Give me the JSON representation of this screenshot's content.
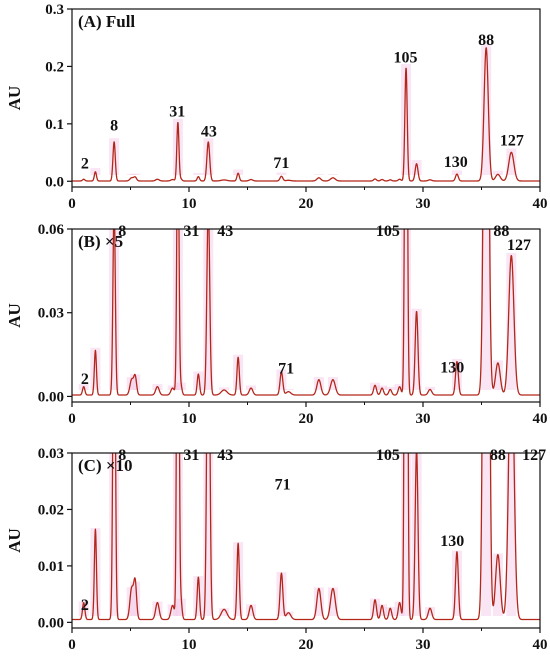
{
  "chart_data": [
    {
      "type": "line",
      "title": "(A) Full",
      "ylabel": "AU",
      "xlim": [
        0,
        40
      ],
      "ylim": [
        -0.01,
        0.3
      ],
      "xticks": [
        "0",
        "10",
        "20",
        "30",
        "40"
      ],
      "yticks": [
        {
          "v": 0.0,
          "label": "0.0"
        },
        {
          "v": 0.1,
          "label": "0.1"
        },
        {
          "v": 0.2,
          "label": "0.2"
        },
        {
          "v": 0.3,
          "label": "0.3"
        }
      ],
      "peak_labels": [
        {
          "text": "2",
          "x": 1.1,
          "y": 0.022
        },
        {
          "text": "8",
          "x": 3.6,
          "y": 0.088
        },
        {
          "text": "31",
          "x": 9.0,
          "y": 0.113
        },
        {
          "text": "43",
          "x": 11.7,
          "y": 0.078
        },
        {
          "text": "71",
          "x": 17.9,
          "y": 0.023
        },
        {
          "text": "105",
          "x": 28.5,
          "y": 0.207
        },
        {
          "text": "130",
          "x": 32.8,
          "y": 0.025
        },
        {
          "text": "88",
          "x": 35.4,
          "y": 0.237
        },
        {
          "text": "127",
          "x": 37.6,
          "y": 0.062
        }
      ]
    },
    {
      "type": "line",
      "title": "(B) ×5",
      "ylabel": "AU",
      "xlim": [
        0,
        40
      ],
      "ylim": [
        -0.002,
        0.06
      ],
      "xticks": [
        "0",
        "10",
        "20",
        "30",
        "40"
      ],
      "yticks": [
        {
          "v": 0.0,
          "label": "0.00"
        },
        {
          "v": 0.03,
          "label": "0.03"
        },
        {
          "v": 0.06,
          "label": "0.06"
        }
      ],
      "peak_labels": [
        {
          "text": "2",
          "x": 1.1,
          "y": 0.0045
        },
        {
          "text": "8",
          "x": 4.3,
          "y": 0.0575
        },
        {
          "text": "31",
          "x": 10.2,
          "y": 0.0575
        },
        {
          "text": "43",
          "x": 13.1,
          "y": 0.0575
        },
        {
          "text": "71",
          "x": 18.3,
          "y": 0.0083
        },
        {
          "text": "105",
          "x": 27.0,
          "y": 0.0575
        },
        {
          "text": "130",
          "x": 32.5,
          "y": 0.0085
        },
        {
          "text": "88",
          "x": 36.7,
          "y": 0.0575
        },
        {
          "text": "127",
          "x": 38.2,
          "y": 0.0525
        }
      ]
    },
    {
      "type": "line",
      "title": "(C) ×10",
      "ylabel": "AU",
      "xlim": [
        0,
        40
      ],
      "ylim": [
        -0.001,
        0.03
      ],
      "xticks": [
        "0",
        "10",
        "20",
        "30",
        "40"
      ],
      "yticks": [
        {
          "v": 0.0,
          "label": "0.00"
        },
        {
          "v": 0.01,
          "label": "0.01"
        },
        {
          "v": 0.02,
          "label": "0.02"
        },
        {
          "v": 0.03,
          "label": "0.03"
        }
      ],
      "peak_labels": [
        {
          "text": "2",
          "x": 1.1,
          "y": 0.0022
        },
        {
          "text": "8",
          "x": 4.3,
          "y": 0.0288
        },
        {
          "text": "31",
          "x": 10.2,
          "y": 0.0288
        },
        {
          "text": "43",
          "x": 13.1,
          "y": 0.0288
        },
        {
          "text": "71",
          "x": 18.0,
          "y": 0.0235
        },
        {
          "text": "105",
          "x": 27.0,
          "y": 0.0288
        },
        {
          "text": "130",
          "x": 32.5,
          "y": 0.0135
        },
        {
          "text": "88",
          "x": 36.4,
          "y": 0.0288
        },
        {
          "text": "127",
          "x": 39.5,
          "y": 0.0288
        }
      ]
    }
  ],
  "peaks": [
    {
      "x": 1.0,
      "h": 0.003,
      "w": 0.1
    },
    {
      "x": 2.0,
      "h": 0.016,
      "w": 0.09
    },
    {
      "x": 3.6,
      "h": 0.068,
      "w": 0.1
    },
    {
      "x": 5.1,
      "h": 0.0055,
      "w": 0.15
    },
    {
      "x": 5.4,
      "h": 0.0065,
      "w": 0.12
    },
    {
      "x": 7.3,
      "h": 0.003,
      "w": 0.15
    },
    {
      "x": 8.6,
      "h": 0.0025,
      "w": 0.15
    },
    {
      "x": 9.05,
      "h": 0.102,
      "w": 0.09
    },
    {
      "x": 9.3,
      "h": 0.0035,
      "w": 0.1
    },
    {
      "x": 10.8,
      "h": 0.0075,
      "w": 0.1
    },
    {
      "x": 11.65,
      "h": 0.068,
      "w": 0.12
    },
    {
      "x": 13.0,
      "h": 0.0018,
      "w": 0.25
    },
    {
      "x": 14.2,
      "h": 0.0135,
      "w": 0.1
    },
    {
      "x": 15.3,
      "h": 0.0025,
      "w": 0.15
    },
    {
      "x": 17.9,
      "h": 0.0082,
      "w": 0.12
    },
    {
      "x": 18.5,
      "h": 0.0012,
      "w": 0.2
    },
    {
      "x": 21.1,
      "h": 0.0055,
      "w": 0.17
    },
    {
      "x": 22.3,
      "h": 0.0055,
      "w": 0.2
    },
    {
      "x": 25.9,
      "h": 0.0035,
      "w": 0.12
    },
    {
      "x": 26.5,
      "h": 0.0025,
      "w": 0.12
    },
    {
      "x": 27.2,
      "h": 0.002,
      "w": 0.12
    },
    {
      "x": 28.0,
      "h": 0.003,
      "w": 0.12
    },
    {
      "x": 28.55,
      "h": 0.197,
      "w": 0.1
    },
    {
      "x": 29.45,
      "h": 0.03,
      "w": 0.12
    },
    {
      "x": 30.6,
      "h": 0.002,
      "w": 0.15
    },
    {
      "x": 32.9,
      "h": 0.012,
      "w": 0.12
    },
    {
      "x": 35.4,
      "h": 0.232,
      "w": 0.18
    },
    {
      "x": 36.4,
      "h": 0.0115,
      "w": 0.2
    },
    {
      "x": 37.55,
      "h": 0.05,
      "w": 0.22
    }
  ]
}
